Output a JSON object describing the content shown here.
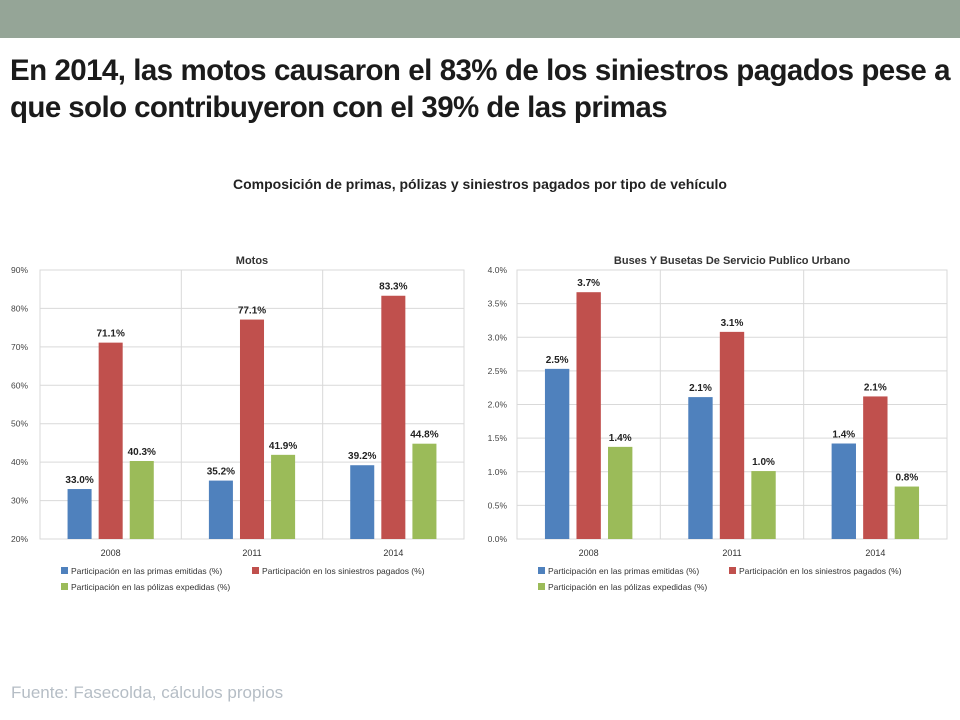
{
  "header": {
    "headline": "En 2014, las motos causaron el 83% de los siniestros pagados pese a que solo contribuyeron con el 39% de las primas",
    "subtitle": "Composición de primas, pólizas y siniestros pagados por tipo de vehículo"
  },
  "footer": {
    "source": "Fuente: Fasecolda, cálculos propios"
  },
  "colors": {
    "topbar": "#95a597",
    "primas": "#4f81bd",
    "siniestros": "#c0504d",
    "polizas": "#9bbb59"
  },
  "chart_data": [
    {
      "type": "bar",
      "title": "Motos",
      "categories": [
        "2008",
        "2011",
        "2014"
      ],
      "ylim": [
        0.2,
        0.9
      ],
      "yticks": [
        0.2,
        0.3,
        0.4,
        0.5,
        0.6,
        0.7,
        0.8,
        0.9
      ],
      "ytick_labels": [
        "20%",
        "30%",
        "40%",
        "50%",
        "60%",
        "70%",
        "80%",
        "90%"
      ],
      "grid": true,
      "legend_position": "bottom",
      "series": [
        {
          "name": "Participación en las primas emitidas (%)",
          "color": "#4f81bd",
          "values": [
            0.33,
            0.352,
            0.392
          ],
          "labels": [
            "33.0%",
            "35.2%",
            "39.2%"
          ]
        },
        {
          "name": "Participación en los siniestros pagados (%)",
          "color": "#c0504d",
          "values": [
            0.711,
            0.771,
            0.833
          ],
          "labels": [
            "71.1%",
            "77.1%",
            "83.3%"
          ]
        },
        {
          "name": "Participación en las pólizas expedidas (%)",
          "color": "#9bbb59",
          "values": [
            0.403,
            0.419,
            0.448
          ],
          "labels": [
            "40.3%",
            "41.9%",
            "44.8%"
          ]
        }
      ]
    },
    {
      "type": "bar",
      "title": "Buses Y Busetas De Servicio Publico Urbano",
      "categories": [
        "2008",
        "2011",
        "2014"
      ],
      "ylim": [
        0.0,
        0.04
      ],
      "yticks": [
        0.0,
        0.005,
        0.01,
        0.015,
        0.02,
        0.025,
        0.03,
        0.035,
        0.04
      ],
      "ytick_labels": [
        "0.0%",
        "0.5%",
        "1.0%",
        "1.5%",
        "2.0%",
        "2.5%",
        "3.0%",
        "3.5%",
        "4.0%"
      ],
      "grid": true,
      "legend_position": "bottom",
      "series": [
        {
          "name": "Participación en las primas emitidas (%)",
          "color": "#4f81bd",
          "values": [
            0.0253,
            0.0211,
            0.0142
          ],
          "labels": [
            "2.5%",
            "2.1%",
            "1.4%"
          ]
        },
        {
          "name": "Participación en los siniestros pagados (%)",
          "color": "#c0504d",
          "values": [
            0.0367,
            0.0308,
            0.0212
          ],
          "labels": [
            "3.7%",
            "3.1%",
            "2.1%"
          ]
        },
        {
          "name": "Participación en las pólizas expedidas (%)",
          "color": "#9bbb59",
          "values": [
            0.0137,
            0.0101,
            0.0078
          ],
          "labels": [
            "1.4%",
            "1.0%",
            "0.8%"
          ]
        }
      ]
    }
  ]
}
